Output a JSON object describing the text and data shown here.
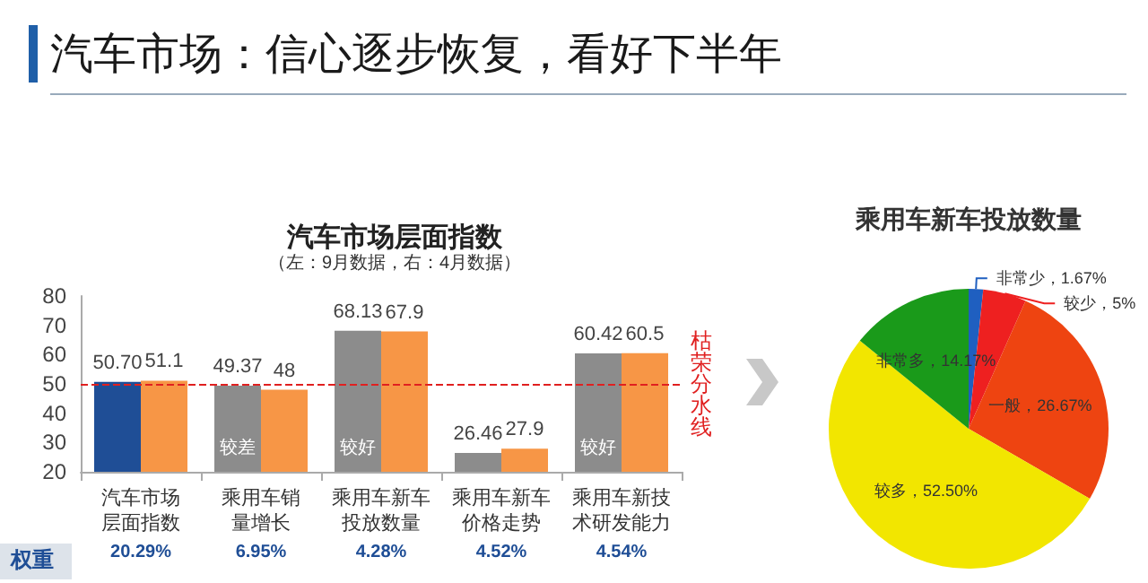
{
  "chart_data": [
    {
      "type": "bar",
      "title": "汽车市场层面指数",
      "subtitle": "（左：9月数据，右：4月数据）",
      "categories": [
        "汽车市场层面指数",
        "乘用车销量增长",
        "乘用车新车投放数量",
        "乘用车新车价格走势",
        "乘用车新技术研发能力"
      ],
      "series": [
        {
          "colors": [
            "#1f4e96",
            "#8c8c8c",
            "#8c8c8c",
            "#8c8c8c",
            "#8c8c8c"
          ],
          "values": [
            50.7,
            49.37,
            68.13,
            26.46,
            60.42
          ],
          "value_labels": [
            "50.70",
            "49.37",
            "68.13",
            "26.46",
            "60.42"
          ]
        },
        {
          "color": "#f79646",
          "values": [
            51.1,
            48,
            67.9,
            27.9,
            60.5
          ],
          "value_labels": [
            "51.1",
            "48",
            "67.9",
            "27.9",
            "60.5"
          ]
        }
      ],
      "ylim": [
        20,
        80
      ],
      "yticks": [
        20,
        30,
        40,
        50,
        60,
        70,
        80
      ],
      "grid": false,
      "ref_lines": [
        {
          "axis": "y",
          "value": 50,
          "label": "枯荣分水线",
          "color": "#e02020",
          "line_style": "dashed"
        }
      ],
      "annotations": [
        "汽车市场：信心逐步恢复，看好下半年",
        "权重",
        "20.29%",
        "6.95%",
        "4.28%",
        "4.52%",
        "4.54%",
        {
          "text": "较差",
          "x": "乘用车销量增长",
          "y": 28
        },
        {
          "text": "较好",
          "x": "乘用车新车投放数量",
          "y": 28
        },
        {
          "text": "较好",
          "x": "乘用车新技术研发能力",
          "y": 28
        }
      ]
    },
    {
      "type": "pie",
      "title": "乘用车新车投放数量",
      "categories": [
        "非常少",
        "较少",
        "一般",
        "较多",
        "非常多"
      ],
      "values": [
        1.67,
        5,
        26.67,
        52.5,
        14.17
      ],
      "value_labels": [
        "1.67%",
        "5%",
        "26.67%",
        "52.50%",
        "14.17%"
      ],
      "colors": [
        "#1f5fc0",
        "#ee2020",
        "#ee4411",
        "#f2e600",
        "#1a9a1a"
      ]
    }
  ]
}
